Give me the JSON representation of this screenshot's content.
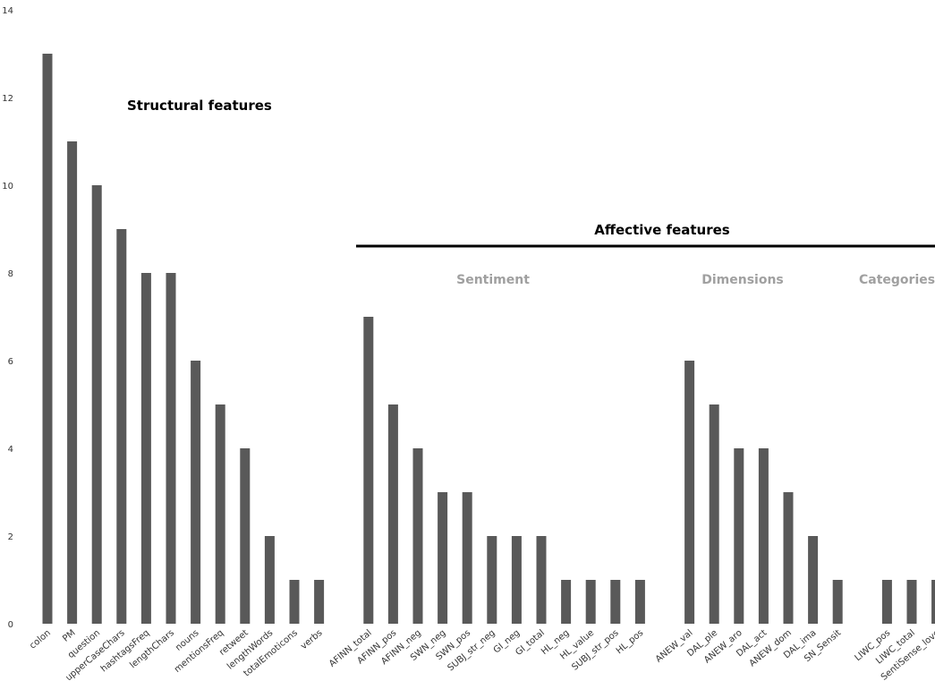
{
  "colors": {
    "bar": "#595959",
    "group_label": "#a0a0a0",
    "text": "#000000"
  },
  "annotations": {
    "structural": "Structural features",
    "affective": "Affective features",
    "sentiment": "Sentiment",
    "dimensions": "Dimensions",
    "categories": "Categories"
  },
  "chart_data": {
    "type": "bar",
    "title": "",
    "xlabel": "",
    "ylabel": "",
    "ylim": [
      0,
      14
    ],
    "yticks": [
      0,
      2,
      4,
      6,
      8,
      10,
      12,
      14
    ],
    "grid": false,
    "categories": [
      "colon",
      "PM",
      "question",
      "upperCaseChars",
      "hashtagsFreq",
      "lengthChars",
      "nouns",
      "mentionsFreq",
      "retweet",
      "lengthWords",
      "totalEmoticons",
      "verbs",
      "",
      "AFINN_total",
      "AFINN_pos",
      "AFINN_neg",
      "SWN_neg",
      "SWN_pos",
      "SUBJ_str_neg",
      "GI_neg",
      "GI_total",
      "HL_neg",
      "HL_value",
      "SUBJ_str_pos",
      "HL_pos",
      "",
      "ANEW_val",
      "DAL_ple",
      "ANEW_aro",
      "DAL_act",
      "ANEW_dom",
      "DAL_ima",
      "SN_Sensit",
      "",
      "LIWC_pos",
      "LIWC_total",
      "SentiSense_love"
    ],
    "values": [
      13,
      11,
      10,
      9,
      8,
      8,
      6,
      5,
      4,
      2,
      1,
      1,
      0,
      7,
      5,
      4,
      3,
      3,
      2,
      2,
      2,
      1,
      1,
      1,
      1,
      0,
      6,
      5,
      4,
      4,
      3,
      2,
      1,
      0,
      1,
      1,
      1
    ]
  }
}
